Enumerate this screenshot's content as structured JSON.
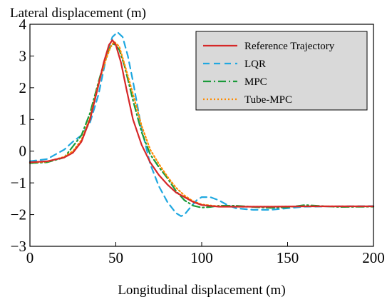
{
  "chart_data": {
    "type": "line",
    "title": "",
    "xlabel": "Longitudinal displacement (m)",
    "ylabel": "Lateral displacement (m)",
    "xlim": [
      0,
      200
    ],
    "ylim": [
      -3,
      4
    ],
    "xticks": [
      "0",
      "50",
      "100",
      "150",
      "200"
    ],
    "yticks": [
      "4",
      "3",
      "2",
      "1",
      "0",
      "−1",
      "−2",
      "−3"
    ],
    "grid": false,
    "legend_position": "top-right",
    "legend_background": "#d9d9d9",
    "series": [
      {
        "name": "Reference Trajectory",
        "color": "#d62728",
        "style": "solid",
        "x": [
          0,
          10,
          20,
          25,
          30,
          35,
          40,
          43,
          46,
          48,
          50,
          53,
          56,
          60,
          65,
          70,
          75,
          80,
          85,
          90,
          95,
          100,
          110,
          120,
          140,
          160,
          180,
          200
        ],
        "y": [
          -0.35,
          -0.32,
          -0.2,
          -0.05,
          0.3,
          1.0,
          2.1,
          2.8,
          3.35,
          3.5,
          3.35,
          2.8,
          2.0,
          1.0,
          0.2,
          -0.35,
          -0.75,
          -1.05,
          -1.3,
          -1.45,
          -1.6,
          -1.7,
          -1.75,
          -1.75,
          -1.75,
          -1.74,
          -1.74,
          -1.74
        ]
      },
      {
        "name": "LQR",
        "color": "#1fa8e0",
        "style": "dashed",
        "x": [
          0,
          10,
          20,
          25,
          30,
          35,
          40,
          45,
          48,
          51,
          54,
          57,
          60,
          65,
          70,
          75,
          80,
          85,
          88,
          90,
          93,
          97,
          100,
          105,
          110,
          115,
          120,
          130,
          140,
          150,
          160,
          180,
          200
        ],
        "y": [
          -0.32,
          -0.25,
          0.05,
          0.3,
          0.5,
          0.9,
          1.8,
          3.1,
          3.6,
          3.75,
          3.6,
          3.0,
          2.2,
          0.7,
          -0.4,
          -1.1,
          -1.6,
          -1.95,
          -2.05,
          -2.0,
          -1.8,
          -1.55,
          -1.45,
          -1.45,
          -1.55,
          -1.7,
          -1.8,
          -1.85,
          -1.85,
          -1.8,
          -1.75,
          -1.74,
          -1.73
        ]
      },
      {
        "name": "MPC",
        "color": "#1a9a3a",
        "style": "dashdot",
        "x": [
          0,
          10,
          20,
          25,
          30,
          35,
          40,
          44,
          47,
          49,
          52,
          55,
          60,
          65,
          70,
          75,
          80,
          85,
          90,
          95,
          100,
          105,
          110,
          120,
          130,
          140,
          150,
          160,
          170,
          180,
          200
        ],
        "y": [
          -0.38,
          -0.35,
          -0.2,
          0.15,
          0.5,
          1.2,
          2.2,
          2.95,
          3.3,
          3.38,
          3.2,
          2.7,
          1.6,
          0.6,
          -0.1,
          -0.5,
          -0.85,
          -1.25,
          -1.55,
          -1.72,
          -1.78,
          -1.76,
          -1.72,
          -1.72,
          -1.76,
          -1.79,
          -1.77,
          -1.7,
          -1.73,
          -1.76,
          -1.75
        ]
      },
      {
        "name": "Tube-MPC",
        "color": "#ff8c00",
        "style": "dotted",
        "x": [
          0,
          10,
          20,
          25,
          30,
          35,
          40,
          44,
          47,
          49,
          52,
          55,
          60,
          65,
          70,
          75,
          80,
          85,
          90,
          95,
          100,
          110,
          120,
          140,
          160,
          180,
          200
        ],
        "y": [
          -0.36,
          -0.33,
          -0.18,
          0.0,
          0.35,
          1.05,
          2.15,
          2.85,
          3.3,
          3.45,
          3.3,
          2.75,
          1.8,
          0.8,
          0.05,
          -0.4,
          -0.8,
          -1.15,
          -1.4,
          -1.58,
          -1.68,
          -1.74,
          -1.75,
          -1.75,
          -1.74,
          -1.74,
          -1.74
        ]
      }
    ]
  }
}
